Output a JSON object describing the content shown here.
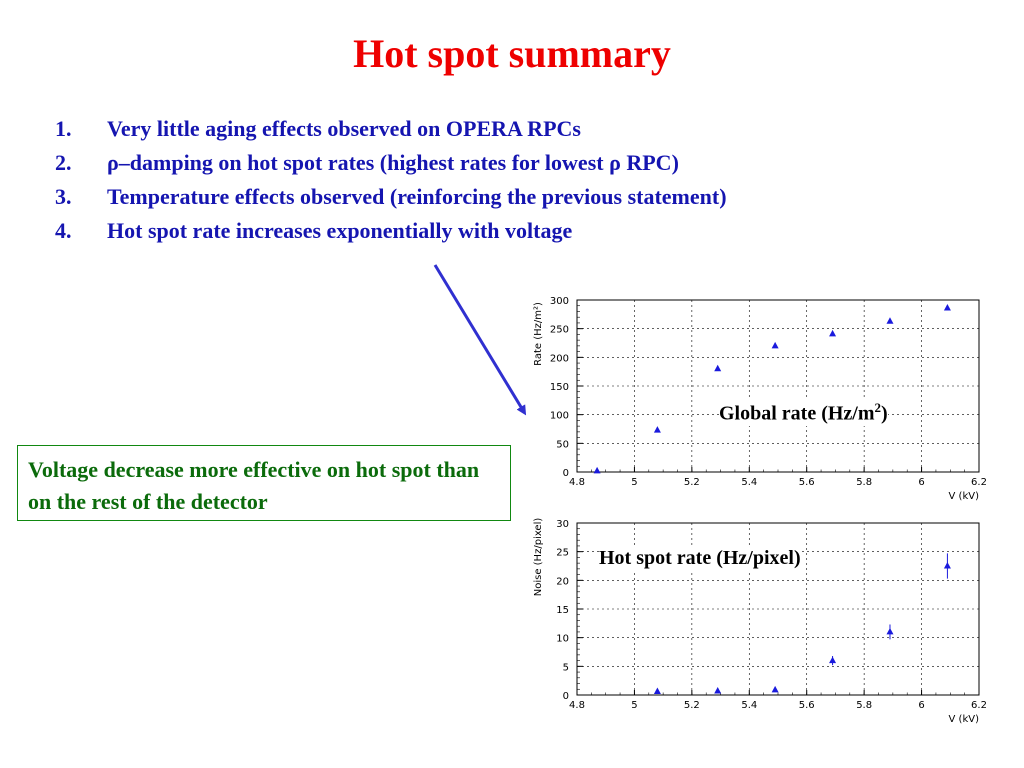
{
  "slide": {
    "title": "Hot spot summary",
    "bullets": [
      {
        "num": "1.",
        "text": "Very little aging effects observed on OPERA RPCs"
      },
      {
        "num": "2.",
        "text": "ρ–damping on hot spot rates (highest rates for lowest ρ RPC)"
      },
      {
        "num": "3.",
        "text": "Temperature effects observed (reinforcing the previous statement)"
      },
      {
        "num": "4.",
        "text": "Hot spot rate increases exponentially with voltage"
      }
    ],
    "callout": "Voltage decrease more effective on hot spot than on the rest of the detector",
    "colors": {
      "title": "#ee0000",
      "bullets": "#1515b0",
      "callout": "#0b6b0b",
      "arrow": "#3030d0",
      "markers": "#1a1add"
    }
  },
  "chart_data": [
    {
      "type": "scatter",
      "label": "Global rate (Hz/m",
      "label_sup": "2",
      "label_end": ")",
      "xlabel": "V (kV)",
      "ylabel": "Rate (Hz/m²)",
      "xlim": [
        4.8,
        6.2
      ],
      "ylim": [
        0,
        300
      ],
      "xticks": [
        "4.8",
        "5",
        "5.2",
        "5.4",
        "5.6",
        "5.8",
        "6",
        "6.2"
      ],
      "yticks": [
        "0",
        "50",
        "100",
        "150",
        "200",
        "250",
        "300"
      ],
      "grid": "dashed",
      "marker": "triangle",
      "x": [
        4.87,
        5.08,
        5.29,
        5.49,
        5.69,
        5.89,
        6.09
      ],
      "y": [
        2,
        73,
        180,
        220,
        241,
        263,
        286
      ],
      "yerr": [
        0,
        0,
        0,
        0,
        0,
        0,
        0
      ]
    },
    {
      "type": "scatter",
      "label": "Hot spot rate (Hz/pixel)",
      "xlabel": "V (kV)",
      "ylabel": "Noise (Hz/pixel)",
      "xlim": [
        4.8,
        6.2
      ],
      "ylim": [
        0,
        30
      ],
      "xticks": [
        "4.8",
        "5",
        "5.2",
        "5.4",
        "5.6",
        "5.8",
        "6",
        "6.2"
      ],
      "yticks": [
        "0",
        "5",
        "10",
        "15",
        "20",
        "25",
        "30"
      ],
      "grid": "dashed",
      "marker": "triangle",
      "x": [
        5.08,
        5.29,
        5.49,
        5.69,
        5.89,
        6.09
      ],
      "y": [
        0.6,
        0.7,
        0.9,
        6.0,
        11.0,
        22.5
      ],
      "yerr": [
        0.2,
        0.2,
        0.3,
        0.8,
        1.3,
        2.2
      ]
    }
  ]
}
